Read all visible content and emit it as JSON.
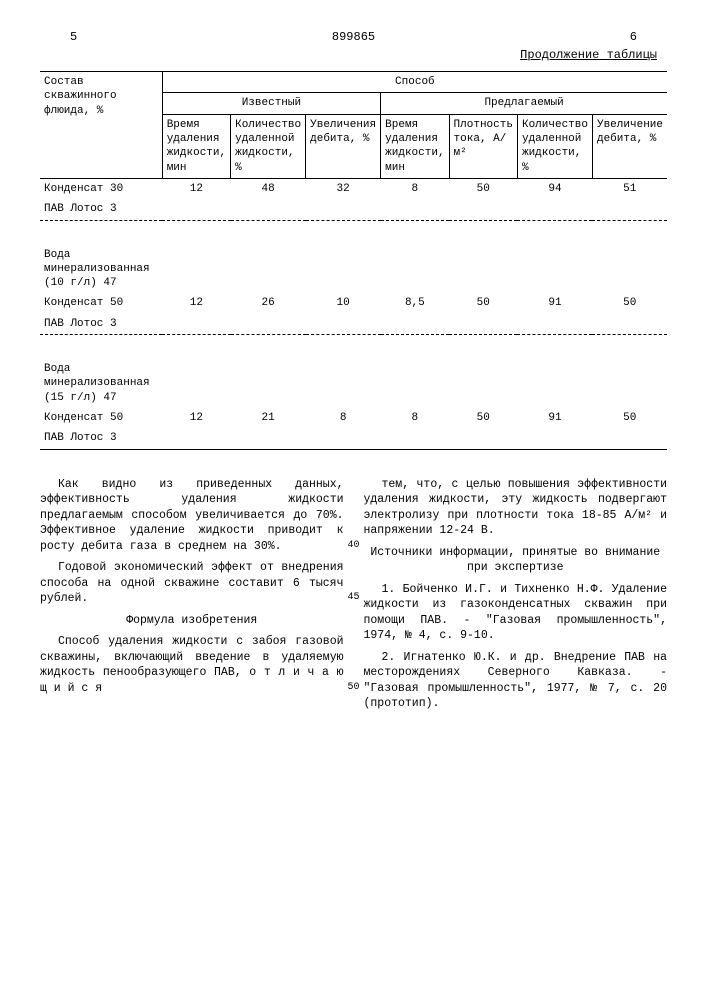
{
  "header": {
    "left_num": "5",
    "doc_num": "899865",
    "right_num": "6",
    "continuation": "Продолжение таблицы"
  },
  "table": {
    "row_header_main": "Состав скважинного флюида, %",
    "group_main": "Способ",
    "group_known": "Известный",
    "group_proposed": "Предлагаемый",
    "cols": {
      "c1": "Время удаления жидкости, мин",
      "c2": "Количество удаленной жидкости, %",
      "c3": "Увеличения дебита, %",
      "c4": "Время удаления жидкости, мин",
      "c5": "Плотность тока, А/м²",
      "c6": "Количество удаленной жидкости, %",
      "c7": "Увеличение дебита, %"
    },
    "groups": [
      {
        "rows": [
          {
            "label": "Конденсат 30",
            "v": [
              "12",
              "48",
              "32",
              "8",
              "50",
              "94",
              "51"
            ]
          },
          {
            "label": "ПАВ Лотос 3",
            "v": [
              "",
              "",
              "",
              "",
              "",
              "",
              ""
            ]
          }
        ]
      },
      {
        "rows": [
          {
            "label": "Вода минерализованная (10 г/л) 47",
            "v": [
              "",
              "",
              "",
              "",
              "",
              "",
              ""
            ]
          },
          {
            "label": "Конденсат 50",
            "v": [
              "12",
              "26",
              "10",
              "8,5",
              "50",
              "91",
              "50"
            ]
          },
          {
            "label": "ПАВ Лотос 3",
            "v": [
              "",
              "",
              "",
              "",
              "",
              "",
              ""
            ]
          }
        ]
      },
      {
        "rows": [
          {
            "label": "Вода минерализованная (15 г/л) 47",
            "v": [
              "",
              "",
              "",
              "",
              "",
              "",
              ""
            ]
          },
          {
            "label": "Конденсат 50",
            "v": [
              "12",
              "21",
              "8",
              "8",
              "50",
              "91",
              "50"
            ]
          },
          {
            "label": "ПАВ Лотос 3",
            "v": [
              "",
              "",
              "",
              "",
              "",
              "",
              ""
            ]
          }
        ]
      }
    ]
  },
  "text": {
    "left": {
      "p1": "Как видно из приведенных данных, эффективность удаления жидкости предлагаемым способом увеличивается до 70%. Эффективное удаление жидкости приводит к росту дебита газа в среднем на 30%.",
      "p2": "Годовой экономический эффект от внедрения способа на одной скважине составит 6 тысяч рублей.",
      "formula_title": "Формула изобретения",
      "p3": "Способ удаления жидкости с забоя газовой скважины, включающий введение в удаляемую жидкость пенообразующего ПАВ, о т л и ч а ю щ и й с я"
    },
    "right": {
      "p1": "тем, что, с целью повышения эффективности удаления жидкости, эту жидкость подвергают электролизу при плотности тока 18-85 А/м² и напряжении 12-24 В.",
      "sources_title": "Источники информации, принятые во внимание при экспертизе",
      "p2": "1. Бойченко И.Г. и Тихненко Н.Ф. Удаление жидкости из газоконденсатных скважин при помощи ПАВ. - \"Газовая промышленность\", 1974, № 4, с. 9-10.",
      "p3": "2. Игнатенко Ю.К. и др. Внедрение ПАВ на месторождениях Северного Кавказа. - \"Газовая промышленность\", 1977, № 7, с. 20 (прототип)."
    },
    "line_nums": {
      "n40": "40",
      "n45": "45",
      "n50": "50"
    }
  }
}
